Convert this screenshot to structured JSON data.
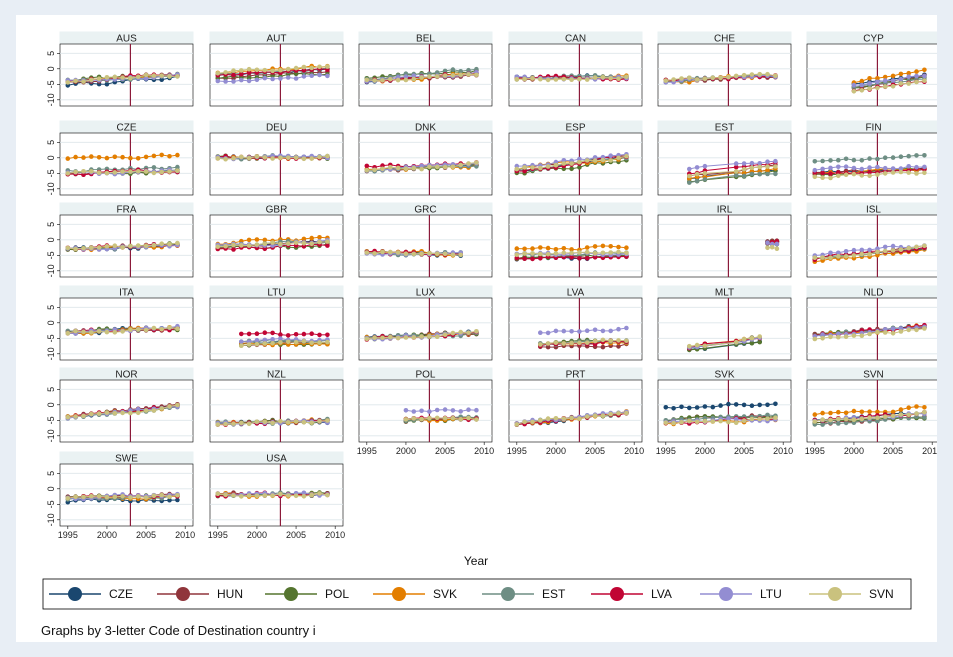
{
  "chart_data": {
    "type": "line",
    "x_axis_title": "Year",
    "x_ticks": [
      1995,
      2000,
      2005,
      2010
    ],
    "y_ticks": [
      5,
      0,
      -5,
      -10
    ],
    "y_tick_labels": [
      "5",
      "0",
      "-5",
      "-10"
    ],
    "ylim": [
      -12,
      8
    ],
    "xlim": [
      1994,
      2011
    ],
    "reference_year": 2003,
    "reference_color": "#8b1a3a",
    "grid": "horizontal",
    "legend_position": "bottom",
    "note": "Graphs by 3-letter Code of Destination country i",
    "series": [
      {
        "name": "CZE",
        "color": "#1a476f"
      },
      {
        "name": "HUN",
        "color": "#90353b"
      },
      {
        "name": "POL",
        "color": "#55752f"
      },
      {
        "name": "SVK",
        "color": "#e37e00"
      },
      {
        "name": "EST",
        "color": "#6e8e84"
      },
      {
        "name": "LVA",
        "color": "#c10534"
      },
      {
        "name": "LTU",
        "color": "#938dd2"
      },
      {
        "name": "SVN",
        "color": "#cac27e"
      }
    ],
    "panels": [
      {
        "title": "AUS",
        "years": [
          1995,
          2009
        ],
        "lv": [
          -5,
          -4,
          -4,
          -4,
          -4,
          -4,
          -4,
          -4
        ],
        "trend": 0.15
      },
      {
        "title": "AUT",
        "years": [
          1995,
          2009
        ],
        "lv": [
          -2,
          -3,
          -3,
          -1,
          -2,
          -2,
          -4,
          -1
        ],
        "trend": 0.12
      },
      {
        "title": "BEL",
        "years": [
          1995,
          2009
        ],
        "lv": [
          -4,
          -4,
          -3,
          -4,
          -3,
          -4,
          -4,
          -4
        ],
        "trend": 0.18
      },
      {
        "title": "CAN",
        "years": [
          1995,
          2009
        ],
        "lv": [
          -3,
          -3,
          -3,
          -3,
          -3,
          -3,
          -3,
          -3
        ],
        "trend": 0.02
      },
      {
        "title": "CHE",
        "years": [
          1995,
          2009
        ],
        "lv": [
          -4,
          -4,
          -4,
          -4,
          -4,
          -4,
          -4,
          -4
        ],
        "trend": 0.12
      },
      {
        "title": "CYP",
        "years": [
          2000,
          2009
        ],
        "lv": [
          -5,
          -6,
          -6,
          -4,
          -6,
          -7,
          -5,
          -7
        ],
        "trend": 0.35
      },
      {
        "title": "CZE",
        "years": [
          1995,
          2009
        ],
        "lv": [
          null,
          -5,
          -5,
          0,
          -4,
          -5,
          -5,
          -5
        ],
        "trend": 0.05
      },
      {
        "title": "DEU",
        "years": [
          1995,
          2009
        ],
        "lv": [
          0,
          0,
          0,
          0,
          0,
          0,
          0,
          0
        ],
        "trend": 0.02
      },
      {
        "title": "DNK",
        "years": [
          1995,
          2009
        ],
        "lv": [
          -4,
          -4,
          -4,
          -4,
          -4,
          -3,
          -4,
          -4
        ],
        "trend": 0.12
      },
      {
        "title": "ESP",
        "years": [
          1995,
          2009
        ],
        "lv": [
          -4,
          -4,
          -5,
          -4,
          -4,
          -4,
          -3,
          -4
        ],
        "trend": 0.3
      },
      {
        "title": "EST",
        "years": [
          1998,
          2009
        ],
        "lv": [
          -7,
          -6,
          -8,
          -7,
          -8,
          -5,
          -4,
          -6
        ],
        "trend": 0.3
      },
      {
        "title": "FIN",
        "years": [
          1995,
          2009
        ],
        "lv": [
          -5,
          -5,
          -5,
          -5,
          -1,
          -5,
          -4,
          -6
        ],
        "trend": 0.1
      },
      {
        "title": "FRA",
        "years": [
          1995,
          2009
        ],
        "lv": [
          -3,
          -3,
          -3,
          -3,
          -3,
          -3,
          -3,
          -3
        ],
        "trend": 0.1
      },
      {
        "title": "GBR",
        "years": [
          1995,
          2009
        ],
        "lv": [
          -2,
          -2,
          -3,
          -1,
          -2,
          -3,
          -2,
          -2
        ],
        "trend": 0.1
      },
      {
        "title": "GRC",
        "years": [
          1995,
          2007
        ],
        "lv": [
          -4,
          -4,
          -4,
          -4,
          -4,
          -4,
          -4,
          -4
        ],
        "trend": -0.05
      },
      {
        "title": "HUN",
        "years": [
          1995,
          2009
        ],
        "lv": [
          -6,
          -6,
          -6,
          -3,
          -5,
          -6,
          -5,
          -5
        ],
        "trend": 0.05
      },
      {
        "title": "IRL",
        "years": [
          2008,
          2009
        ],
        "lv": [
          -1,
          -1,
          -1,
          -1,
          -1,
          -1,
          -1,
          -3
        ],
        "trend": 0
      },
      {
        "title": "ISL",
        "years": [
          1995,
          2009
        ],
        "lv": [
          -6,
          -6,
          -6,
          -7,
          -6,
          -6,
          -5,
          -6
        ],
        "trend": 0.25
      },
      {
        "title": "ITA",
        "years": [
          1995,
          2009
        ],
        "lv": [
          -3,
          -3,
          -3,
          -3,
          -3,
          -3,
          -3,
          -3
        ],
        "trend": 0.1
      },
      {
        "title": "LTU",
        "years": [
          1998,
          2009
        ],
        "lv": [
          -7,
          -7,
          -7,
          -7,
          -6,
          -4,
          -6,
          -7
        ],
        "trend": 0.05
      },
      {
        "title": "LUX",
        "years": [
          1995,
          2009
        ],
        "lv": [
          -5,
          -5,
          -5,
          -5,
          -5,
          -5,
          -5,
          -5
        ],
        "trend": 0.12
      },
      {
        "title": "LVA",
        "years": [
          1998,
          2009
        ],
        "lv": [
          -7,
          -8,
          -7,
          -7,
          -7,
          -7,
          -3,
          -7
        ],
        "trend": 0.1
      },
      {
        "title": "MLT",
        "years": [
          1998,
          2007
        ],
        "lv": [
          -9,
          -8,
          -9,
          -8,
          -8,
          -8,
          -8,
          -8
        ],
        "trend": 0.35
      },
      {
        "title": "NLD",
        "years": [
          1995,
          2009
        ],
        "lv": [
          -4,
          -4,
          -4,
          -4,
          -4,
          -4,
          -4,
          -5
        ],
        "trend": 0.2
      },
      {
        "title": "NOR",
        "years": [
          1995,
          2009
        ],
        "lv": [
          -4,
          -4,
          -4,
          -4,
          -4,
          -4,
          -4,
          -4
        ],
        "trend": 0.25
      },
      {
        "title": "NZL",
        "years": [
          1995,
          2009
        ],
        "lv": [
          -6,
          -6,
          -6,
          -6,
          -6,
          -6,
          -6,
          -6
        ],
        "trend": 0.05
      },
      {
        "title": "POL",
        "years": [
          2000,
          2009
        ],
        "lv": [
          -5,
          -5,
          -5,
          -5,
          -5,
          -5,
          -2,
          -5
        ],
        "trend": 0.05
      },
      {
        "title": "PRT",
        "years": [
          1995,
          2009
        ],
        "lv": [
          -6,
          -6,
          -6,
          -6,
          -6,
          -6,
          -6,
          -6
        ],
        "trend": 0.25
      },
      {
        "title": "SVK",
        "years": [
          1995,
          2009
        ],
        "lv": [
          -1,
          -5,
          -5,
          -6,
          -5,
          -6,
          -6,
          -6
        ],
        "trend": 0.1
      },
      {
        "title": "SVN",
        "years": [
          1995,
          2009
        ],
        "lv": [
          -5,
          -6,
          -6,
          -3,
          -6,
          -5,
          -5,
          -5
        ],
        "trend": 0.15
      },
      {
        "title": "SWE",
        "years": [
          1995,
          2009
        ],
        "lv": [
          -4,
          -3,
          -3,
          -3,
          -3,
          -3,
          -3,
          -3
        ],
        "trend": 0.05
      },
      {
        "title": "USA",
        "years": [
          1995,
          2009
        ],
        "lv": [
          -2,
          -2,
          -2,
          -2,
          -2,
          -2,
          -2,
          -2
        ],
        "trend": 0.02
      }
    ]
  }
}
